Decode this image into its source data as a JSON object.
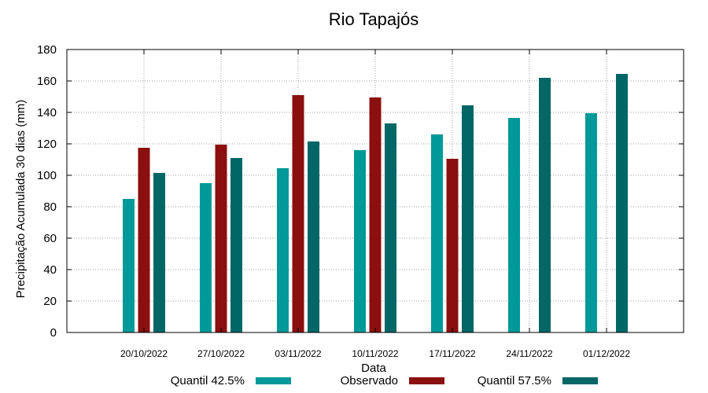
{
  "chart_data": {
    "type": "bar",
    "title": "Rio Tapajós",
    "xlabel": "Data",
    "ylabel": "Precipitação Acumulada 30 dias (mm)",
    "ylim": [
      0,
      180
    ],
    "yticks": [
      0,
      20,
      40,
      60,
      80,
      100,
      120,
      140,
      160,
      180
    ],
    "grid": true,
    "legend_position": "bottom",
    "categories": [
      "20/10/2022",
      "27/10/2022",
      "03/11/2022",
      "10/11/2022",
      "17/11/2022",
      "24/11/2022",
      "01/12/2022"
    ],
    "series": [
      {
        "name": "Quantil 42.5%",
        "color": "#009999",
        "values": [
          85,
          95,
          104.5,
          116,
          126,
          136.5,
          139.5
        ]
      },
      {
        "name": "Observado",
        "color": "#8b0f0f",
        "values": [
          117.5,
          119.5,
          151,
          149.5,
          110.5,
          null,
          null
        ]
      },
      {
        "name": "Quantil 57.5%",
        "color": "#006666",
        "values": [
          101.5,
          111,
          121.5,
          133,
          144.5,
          162,
          164.5
        ]
      }
    ]
  }
}
